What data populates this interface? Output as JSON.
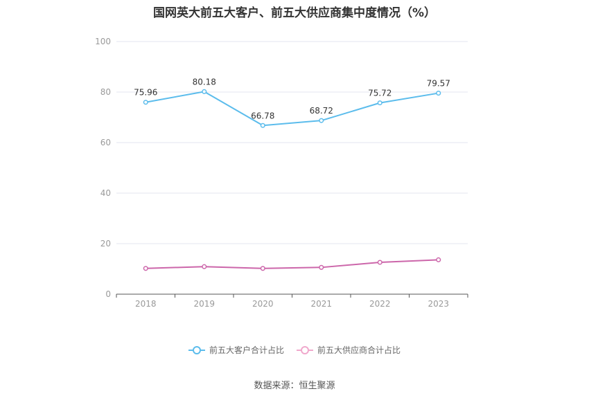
{
  "chart_data": {
    "type": "line",
    "title": "国网英大前五大客户、前五大供应商集中度情况（%）",
    "categories": [
      "2018",
      "2019",
      "2020",
      "2021",
      "2022",
      "2023"
    ],
    "series": [
      {
        "name": "前五大客户合计占比",
        "values": [
          75.96,
          80.18,
          66.78,
          68.72,
          75.72,
          79.57
        ],
        "color": "#5bbcec",
        "show_labels": true
      },
      {
        "name": "前五大供应商合计占比",
        "values": [
          10.2,
          10.9,
          10.2,
          10.6,
          12.6,
          13.6
        ],
        "color": "#cc66aa",
        "show_labels": false
      }
    ],
    "ylim": [
      0,
      100
    ],
    "yticks": [
      0,
      20,
      40,
      60,
      80,
      100
    ],
    "grid": true,
    "legend_position": "bottom"
  },
  "footer": {
    "source": "数据来源：恒生聚源"
  },
  "colors": {
    "grid": "#e3e6ef",
    "axis": "#555555",
    "tick_text": "#999999",
    "label_text": "#333333"
  }
}
